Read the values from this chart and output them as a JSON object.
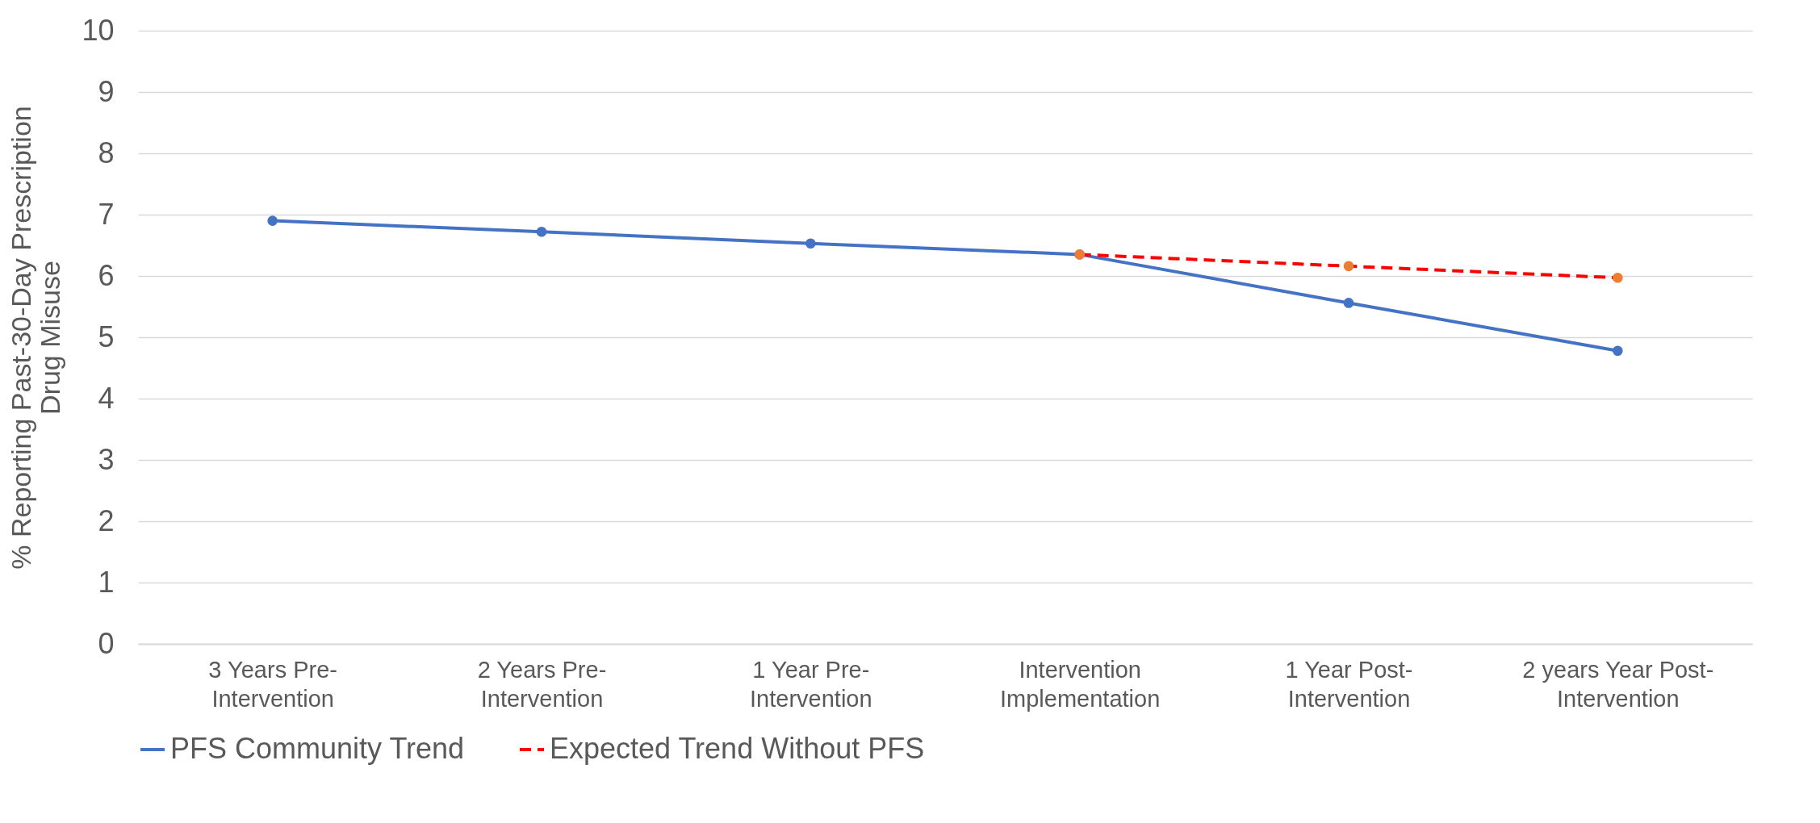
{
  "chart_data": {
    "type": "line",
    "ylabel": "% Reporting Past-30-Day Prescription Drug Misuse",
    "categories": [
      "3 Years Pre-Intervention",
      "2 Years Pre-Intervention",
      "1 Year Pre-Intervention",
      "Intervention Implementation",
      "1 Year Post-Intervention",
      "2 years Year Post-Intervention"
    ],
    "series": [
      {
        "name": "PFS Community Trend",
        "color": "#4472c4",
        "line_style": "solid",
        "values": [
          6.9,
          6.72,
          6.53,
          6.35,
          5.56,
          4.78
        ]
      },
      {
        "name": "Expected Trend Without PFS",
        "color": "#ff0000",
        "colors": [
          null,
          null,
          null,
          "#ed7d31",
          "#ed7d31",
          "#ed7d31"
        ],
        "line_style": "dashed",
        "values": [
          null,
          null,
          null,
          6.35,
          6.16,
          5.97
        ]
      }
    ],
    "ylim": [
      0,
      10
    ],
    "yticks": [
      0,
      1,
      2,
      3,
      4,
      5,
      6,
      7,
      8,
      9,
      10
    ],
    "grid": "y",
    "legend": "bottom",
    "marker": "circle"
  }
}
